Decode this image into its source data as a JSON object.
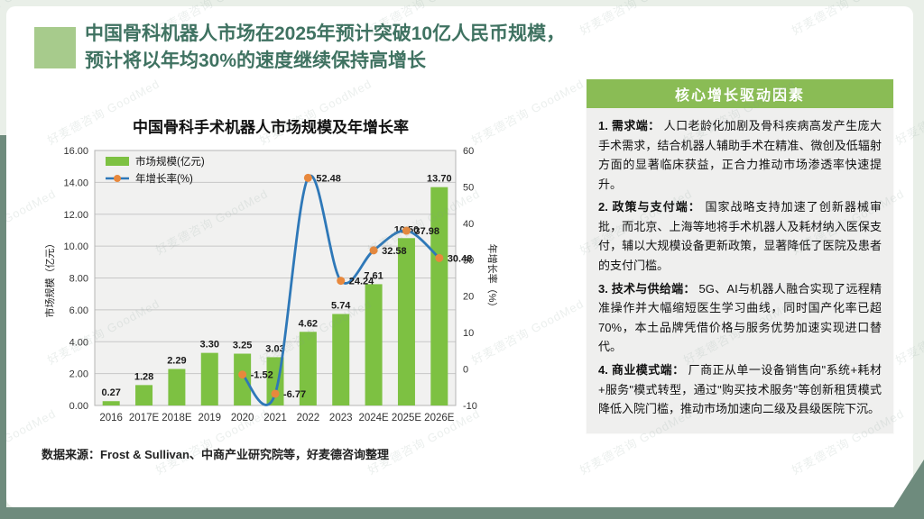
{
  "slide": {
    "title_line1": "中国骨科机器人市场在2025年预计突破10亿人民币规模，",
    "title_line2": "预计将以年均30%的速度继续保持高增长",
    "source": "数据来源：Frost & Sullivan、中商产业研究院等，好麦德咨询整理",
    "watermark": "好麦德咨询 GoodMed"
  },
  "chart_data": {
    "type": "bar+line",
    "title": "中国骨科手术机器人市场规模及年增长率",
    "categories": [
      "2016",
      "2017E",
      "2018E",
      "2019",
      "2020",
      "2021",
      "2022",
      "2023",
      "2024E",
      "2025E",
      "2026E"
    ],
    "series": [
      {
        "name": "市场规模(亿元)",
        "type": "bar",
        "axis": "left",
        "color": "#7dc142",
        "values": [
          0.27,
          1.28,
          2.29,
          3.3,
          3.25,
          3.03,
          4.62,
          5.74,
          7.61,
          10.5,
          13.7
        ]
      },
      {
        "name": "年增长率(%)",
        "type": "line",
        "axis": "right",
        "color": "#2e78b8",
        "marker_color": "#e8883c",
        "values": [
          null,
          null,
          null,
          null,
          -1.52,
          -6.77,
          52.48,
          24.24,
          32.58,
          37.98,
          30.48
        ]
      }
    ],
    "left_axis": {
      "label": "市场规模（亿元）",
      "min": 0,
      "max": 16,
      "step": 2,
      "decimals": 2
    },
    "right_axis": {
      "label": "年增长率（%）",
      "min": -10,
      "max": 60,
      "step": 10,
      "decimals": 0
    },
    "grid": true,
    "legend_position": "top-left-inside",
    "plot_bg": "#f1f1f0",
    "grid_color": "#c7c7c7"
  },
  "panel": {
    "header": "核心增长驱动因素",
    "items": [
      {
        "lead": "1. 需求端：",
        "text": "人口老龄化加剧及骨科疾病高发产生庞大手术需求，结合机器人辅助手术在精准、微创及低辐射方面的显著临床获益，正合力推动市场渗透率快速提升。"
      },
      {
        "lead": "2. 政策与支付端：",
        "text": "国家战略支持加速了创新器械审批，而北京、上海等地将手术机器人及耗材纳入医保支付，辅以大规模设备更新政策，显著降低了医院及患者的支付门槛。"
      },
      {
        "lead": "3. 技术与供给端：",
        "text": "5G、AI与机器人融合实现了远程精准操作并大幅缩短医生学习曲线，同时国产化率已超70%，本土品牌凭借价格与服务优势加速实现进口替代。"
      },
      {
        "lead": "4. 商业模式端：",
        "text": "厂商正从单一设备销售向\"系统+耗材+服务\"模式转型，通过\"购买技术服务\"等创新租赁模式降低入院门槛，推动市场加速向二级及县级医院下沉。"
      }
    ]
  },
  "colors": {
    "bullet_green": "#a7cb8c",
    "title_green": "#3f7261",
    "panel_green": "#8abc55",
    "bar_green": "#7dc142",
    "line_blue": "#2e78b8",
    "marker_orange": "#e8883c",
    "frame_sage": "#6e8b7d"
  }
}
